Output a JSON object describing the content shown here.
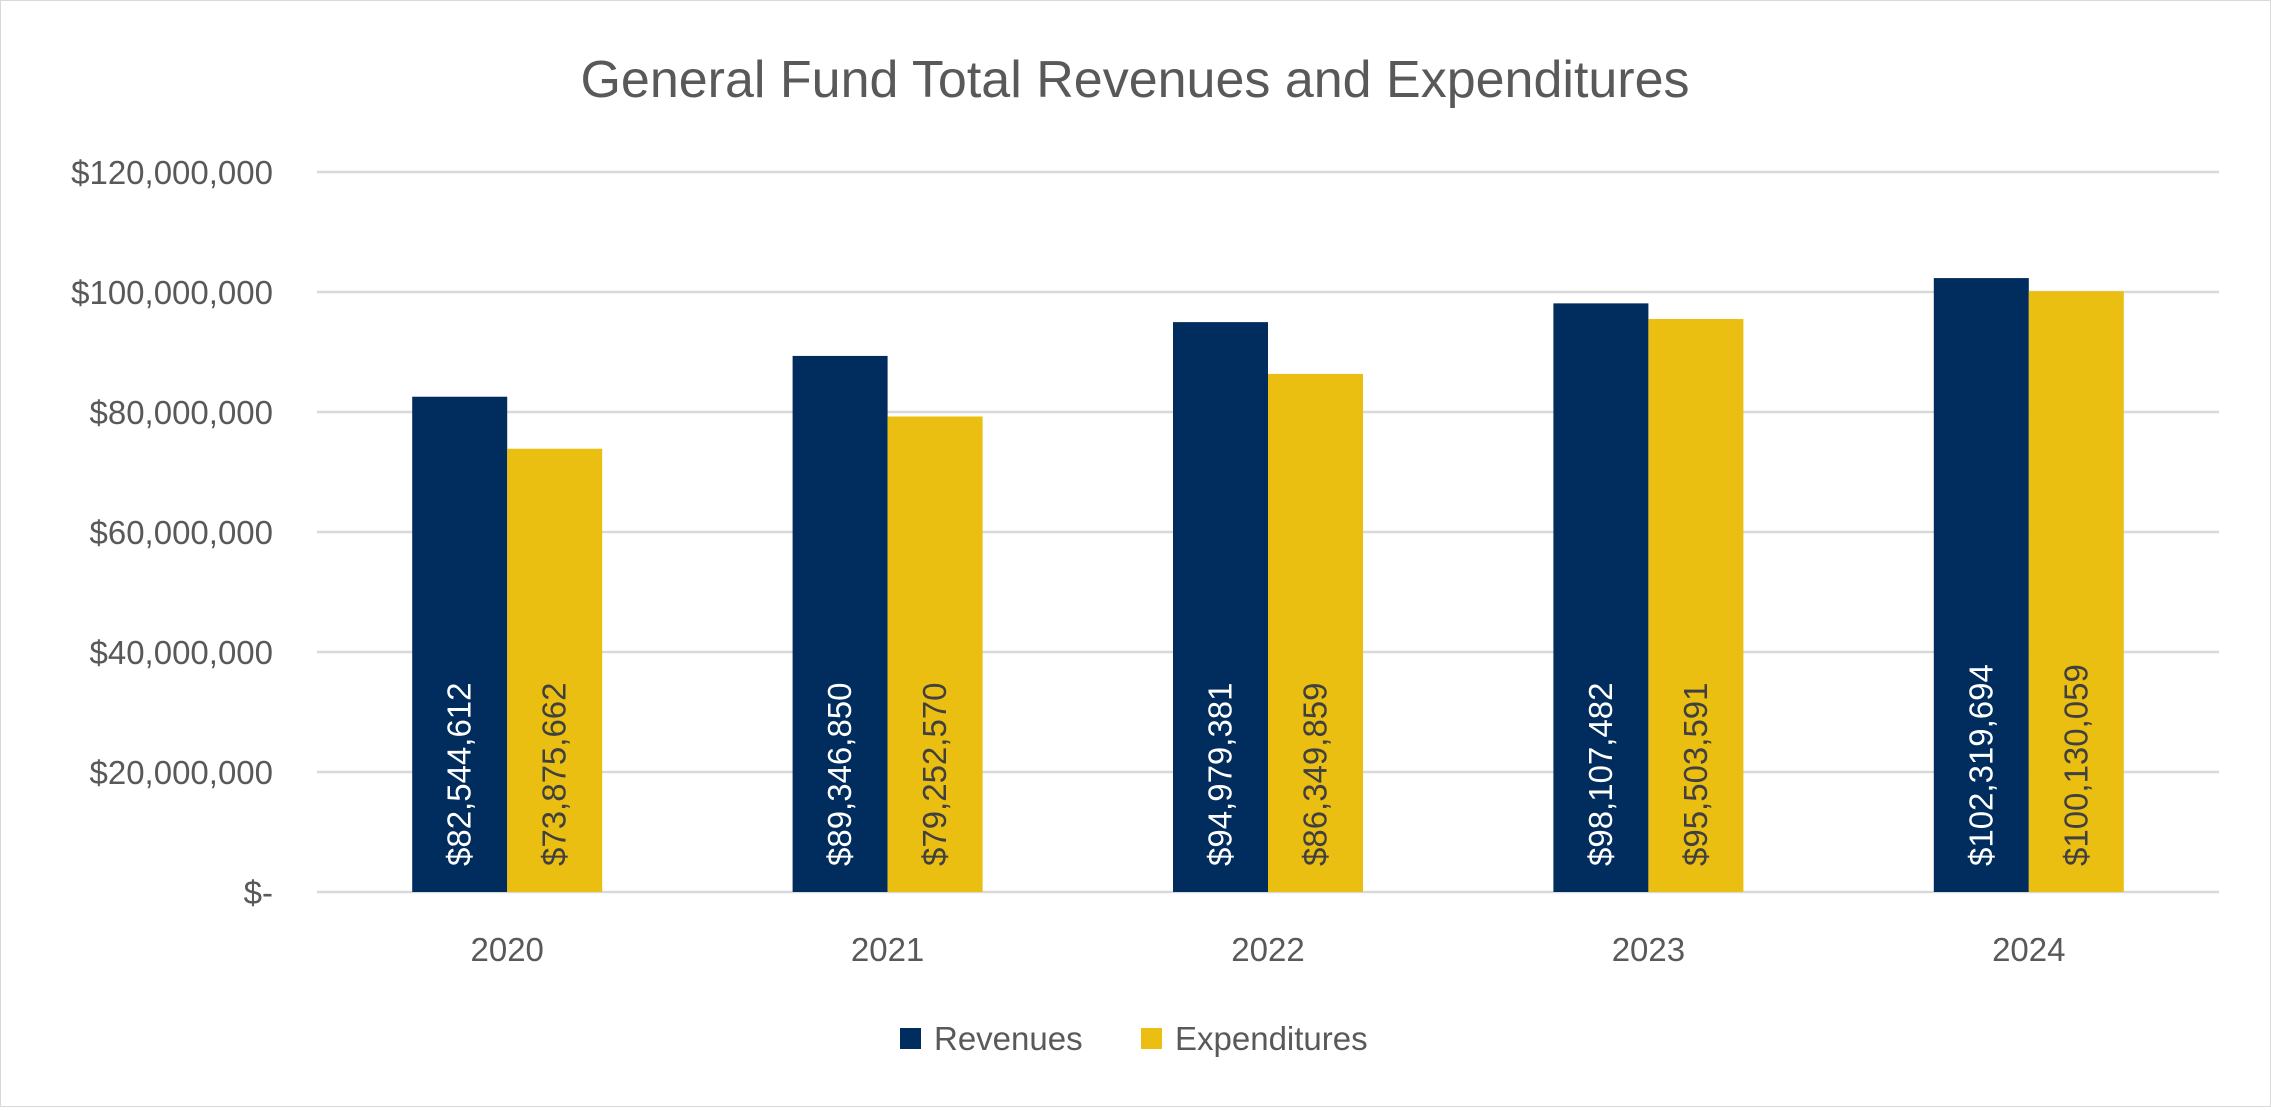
{
  "chart_data": {
    "type": "bar",
    "title": "General Fund Total Revenues and Expenditures",
    "categories": [
      "2020",
      "2021",
      "2022",
      "2023",
      "2024"
    ],
    "series": [
      {
        "name": "Revenues",
        "color": "#002D5E",
        "values": [
          82544612,
          89346850,
          94979381,
          98107482,
          102319694
        ],
        "labels": [
          "$82,544,612",
          "$89,346,850",
          "$94,979,381",
          "$98,107,482",
          "$102,319,694"
        ],
        "label_color": "#ffffff"
      },
      {
        "name": "Expenditures",
        "color": "#EBBE12",
        "values": [
          73875662,
          79252570,
          86349859,
          95503591,
          100130059
        ],
        "labels": [
          "$73,875,662",
          "$79,252,570",
          "$86,349,859",
          "$95,503,591",
          "$100,130,059"
        ],
        "label_color": "#404040"
      }
    ],
    "ylim": [
      0,
      120000000
    ],
    "yticks": [
      0,
      20000000,
      40000000,
      60000000,
      80000000,
      100000000,
      120000000
    ],
    "ytick_labels": [
      "$-",
      "$20,000,000",
      "$40,000,000",
      "$60,000,000",
      "$80,000,000",
      "$100,000,000",
      "$120,000,000"
    ],
    "xlabel": "",
    "ylabel": "",
    "grid": true,
    "legend": "bottom"
  }
}
